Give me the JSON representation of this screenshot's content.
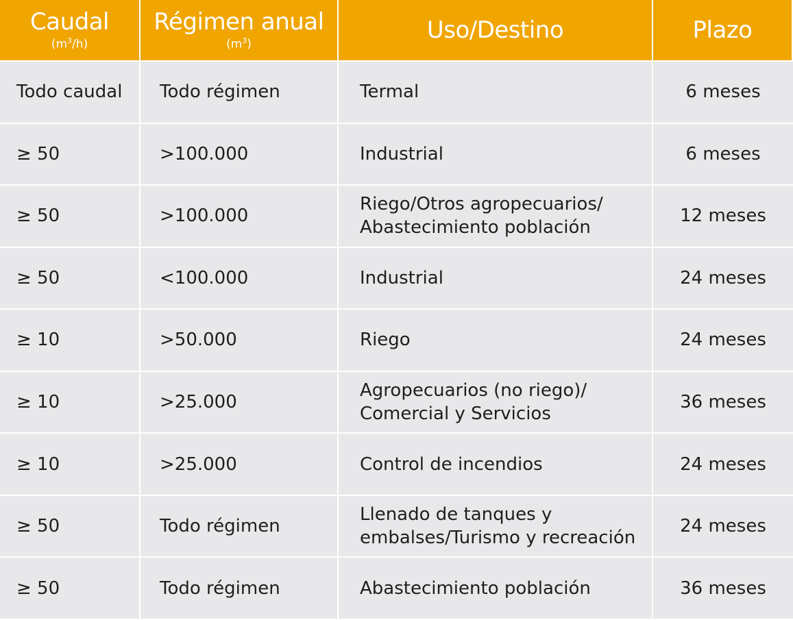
{
  "header": {
    "caudal": "Caudal",
    "caudal_unit_base": "(m",
    "caudal_unit_sup": "3",
    "caudal_unit_end": "/h)",
    "regimen": "Régimen anual",
    "regimen_unit_base": "(m",
    "regimen_unit_sup": "3",
    "regimen_unit_end": ")",
    "uso": "Uso/Destino",
    "plazo": "Plazo"
  },
  "colors": {
    "header_bg": "#f0a500",
    "row_bg": "#e8e8ea",
    "text": "#1e1e1e"
  },
  "rows": [
    {
      "caudal": "Todo caudal",
      "regimen": "Todo régimen",
      "uso": [
        "Termal"
      ],
      "plazo": "6 meses"
    },
    {
      "caudal": "≥ 50",
      "regimen": ">100.000",
      "uso": [
        "Industrial"
      ],
      "plazo": "6 meses"
    },
    {
      "caudal": "≥ 50",
      "regimen": ">100.000",
      "uso": [
        "Riego/Otros agropecuarios/",
        "Abastecimiento población"
      ],
      "plazo": "12 meses"
    },
    {
      "caudal": "≥ 50",
      "regimen": "<100.000",
      "uso": [
        "Industrial"
      ],
      "plazo": "24 meses"
    },
    {
      "caudal": "≥ 10",
      "regimen": ">50.000",
      "uso": [
        "Riego"
      ],
      "plazo": "24 meses"
    },
    {
      "caudal": "≥ 10",
      "regimen": ">25.000",
      "uso": [
        "Agropecuarios (no riego)/",
        "Comercial y Servicios"
      ],
      "plazo": "36 meses"
    },
    {
      "caudal": "≥ 10",
      "regimen": ">25.000",
      "uso": [
        "Control de incendios"
      ],
      "plazo": "24 meses"
    },
    {
      "caudal": "≥ 50",
      "regimen": "Todo régimen",
      "uso": [
        "Llenado de tanques y",
        "embalses/Turismo y recreación"
      ],
      "plazo": "24 meses"
    },
    {
      "caudal": "≥ 50",
      "regimen": "Todo régimen",
      "uso": [
        "Abastecimiento población"
      ],
      "plazo": "36 meses"
    }
  ]
}
